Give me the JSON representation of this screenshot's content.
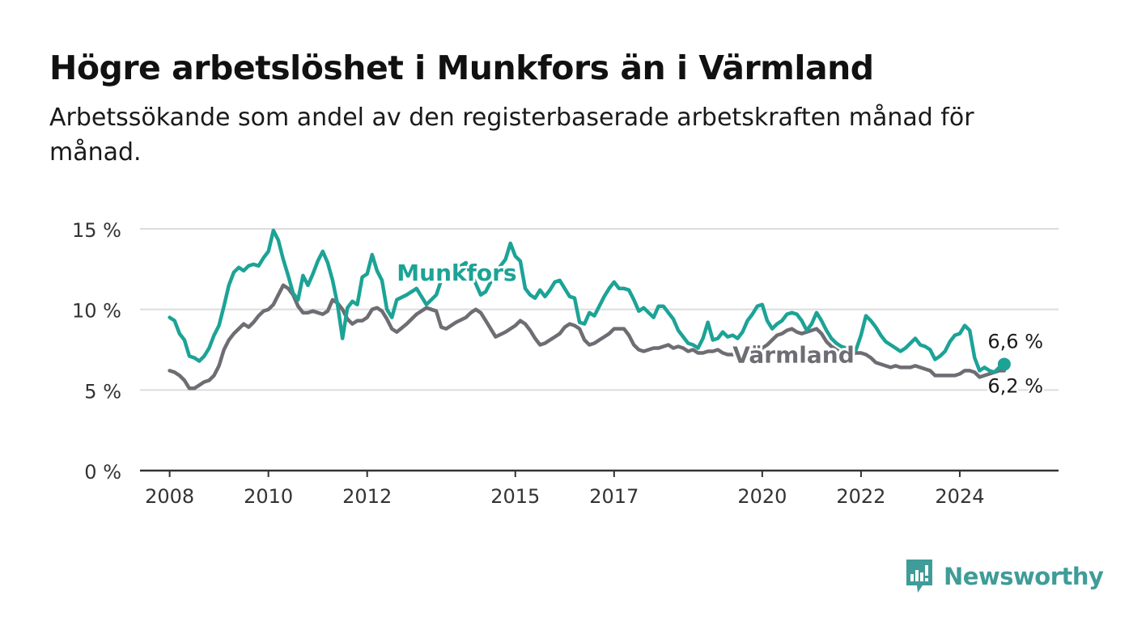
{
  "header": {
    "title": "Högre arbetslöshet i Munkfors än i Värmland",
    "subtitle": "Arbetssökande som andel av den registerbaserade arbetskraften månad för månad."
  },
  "brand": {
    "name": "Newsworthy",
    "color": "#3f9c98",
    "icon": "newsworthy-logo-icon"
  },
  "chart_data": {
    "type": "line",
    "x_unit": "year",
    "xlim": [
      2007.4,
      2026.0
    ],
    "ylim": [
      0,
      15
    ],
    "yticks": [
      0,
      5,
      10,
      15
    ],
    "ytick_labels": [
      "0 %",
      "5 %",
      "10 %",
      "15 %"
    ],
    "xticks": [
      2008,
      2010,
      2012,
      2015,
      2017,
      2020,
      2022,
      2024
    ],
    "xtick_labels": [
      "2008",
      "2010",
      "2012",
      "2015",
      "2017",
      "2020",
      "2022",
      "2024"
    ],
    "grid": true,
    "legend": "none",
    "series": [
      {
        "name": "Munkfors",
        "color": "#1ca396",
        "label_anchor": [
          2012.6,
          11.8
        ],
        "end_label": "6,6 %",
        "x": [
          2008.0,
          2008.1,
          2008.2,
          2008.3,
          2008.4,
          2008.5,
          2008.6,
          2008.7,
          2008.8,
          2008.9,
          2009.0,
          2009.1,
          2009.2,
          2009.3,
          2009.4,
          2009.5,
          2009.6,
          2009.7,
          2009.8,
          2009.9,
          2010.0,
          2010.1,
          2010.2,
          2010.3,
          2010.4,
          2010.5,
          2010.6,
          2010.7,
          2010.8,
          2010.9,
          2011.0,
          2011.1,
          2011.2,
          2011.3,
          2011.4,
          2011.5,
          2011.6,
          2011.7,
          2011.8,
          2011.9,
          2012.0,
          2012.1,
          2012.2,
          2012.3,
          2012.4,
          2012.5,
          2012.6,
          2012.8,
          2013.0,
          2013.2,
          2013.4,
          2013.5,
          2013.6,
          2013.7,
          2013.8,
          2013.9,
          2014.0,
          2014.1,
          2014.2,
          2014.3,
          2014.4,
          2014.6,
          2014.8,
          2014.9,
          2015.0,
          2015.1,
          2015.2,
          2015.3,
          2015.4,
          2015.5,
          2015.6,
          2015.7,
          2015.8,
          2015.9,
          2016.0,
          2016.1,
          2016.2,
          2016.3,
          2016.4,
          2016.5,
          2016.6,
          2016.7,
          2016.8,
          2016.9,
          2017.0,
          2017.1,
          2017.2,
          2017.3,
          2017.4,
          2017.5,
          2017.6,
          2017.7,
          2017.8,
          2017.9,
          2018.0,
          2018.1,
          2018.2,
          2018.3,
          2018.4,
          2018.5,
          2018.6,
          2018.7,
          2018.8,
          2018.9,
          2019.0,
          2019.1,
          2019.2,
          2019.3,
          2019.4,
          2019.5,
          2019.6,
          2019.7,
          2019.8,
          2019.9,
          2020.0,
          2020.1,
          2020.2,
          2020.3,
          2020.4,
          2020.5,
          2020.6,
          2020.7,
          2020.8,
          2020.9,
          2021.0,
          2021.1,
          2021.2,
          2021.3,
          2021.4,
          2021.5,
          2021.6,
          2021.7,
          2021.8,
          2021.9,
          2022.0,
          2022.1,
          2022.2,
          2022.3,
          2022.4,
          2022.5,
          2022.6,
          2022.7,
          2022.8,
          2022.9,
          2023.0,
          2023.1,
          2023.2,
          2023.3,
          2023.4,
          2023.5,
          2023.6,
          2023.7,
          2023.8,
          2023.9,
          2024.0,
          2024.1,
          2024.2,
          2024.3,
          2024.4,
          2024.5,
          2024.6,
          2024.7,
          2024.8,
          2024.9
        ],
        "y": [
          9.5,
          9.3,
          8.5,
          8.1,
          7.1,
          7.0,
          6.8,
          7.1,
          7.6,
          8.4,
          9.0,
          10.2,
          11.5,
          12.3,
          12.6,
          12.4,
          12.7,
          12.8,
          12.7,
          13.2,
          13.6,
          14.9,
          14.3,
          13.1,
          12.1,
          11.0,
          10.6,
          12.1,
          11.5,
          12.2,
          13.0,
          13.6,
          12.9,
          11.8,
          10.3,
          8.2,
          10.1,
          10.5,
          10.3,
          12.0,
          12.2,
          13.4,
          12.4,
          11.8,
          10.0,
          9.5,
          10.6,
          10.9,
          11.3,
          10.3,
          10.9,
          11.8,
          12.4,
          12.3,
          12.6,
          12.7,
          12.9,
          12.3,
          11.6,
          10.9,
          11.1,
          12.3,
          13.1,
          14.1,
          13.3,
          13.0,
          11.3,
          10.9,
          10.7,
          11.2,
          10.8,
          11.2,
          11.7,
          11.8,
          11.3,
          10.8,
          10.7,
          9.2,
          9.1,
          9.8,
          9.6,
          10.2,
          10.8,
          11.3,
          11.7,
          11.3,
          11.3,
          11.2,
          10.6,
          9.9,
          10.1,
          9.8,
          9.5,
          10.2,
          10.2,
          9.8,
          9.4,
          8.7,
          8.3,
          7.9,
          7.8,
          7.6,
          8.2,
          9.2,
          8.1,
          8.2,
          8.6,
          8.3,
          8.4,
          8.2,
          8.6,
          9.3,
          9.7,
          10.2,
          10.3,
          9.3,
          8.8,
          9.1,
          9.3,
          9.7,
          9.8,
          9.7,
          9.3,
          8.7,
          9.1,
          9.8,
          9.3,
          8.7,
          8.2,
          7.9,
          7.7,
          7.6,
          7.4,
          7.5,
          8.4,
          9.6,
          9.3,
          8.9,
          8.4,
          8.0,
          7.8,
          7.6,
          7.4,
          7.6,
          7.9,
          8.2,
          7.8,
          7.7,
          7.5,
          6.9,
          7.1,
          7.4,
          8.0,
          8.4,
          8.5,
          9.0,
          8.7,
          7.0,
          6.2,
          6.4,
          6.2,
          6.1,
          6.4,
          6.6
        ]
      },
      {
        "name": "Värmland",
        "color": "#6e6d73",
        "label_anchor": [
          2019.4,
          6.7
        ],
        "end_label": "6,2 %",
        "x": [
          2008.0,
          2008.1,
          2008.2,
          2008.3,
          2008.4,
          2008.5,
          2008.6,
          2008.7,
          2008.8,
          2008.9,
          2009.0,
          2009.1,
          2009.2,
          2009.3,
          2009.4,
          2009.5,
          2009.6,
          2009.7,
          2009.8,
          2009.9,
          2010.0,
          2010.1,
          2010.2,
          2010.3,
          2010.4,
          2010.5,
          2010.6,
          2010.7,
          2010.8,
          2010.9,
          2011.0,
          2011.1,
          2011.2,
          2011.3,
          2011.4,
          2011.5,
          2011.6,
          2011.7,
          2011.8,
          2011.9,
          2012.0,
          2012.1,
          2012.2,
          2012.3,
          2012.4,
          2012.5,
          2012.6,
          2012.8,
          2013.0,
          2013.2,
          2013.4,
          2013.5,
          2013.6,
          2013.8,
          2014.0,
          2014.1,
          2014.2,
          2014.3,
          2014.4,
          2014.6,
          2014.8,
          2014.9,
          2015.0,
          2015.1,
          2015.2,
          2015.3,
          2015.4,
          2015.5,
          2015.6,
          2015.7,
          2015.8,
          2015.9,
          2016.0,
          2016.1,
          2016.2,
          2016.3,
          2016.4,
          2016.5,
          2016.6,
          2016.7,
          2016.8,
          2016.9,
          2017.0,
          2017.1,
          2017.2,
          2017.3,
          2017.4,
          2017.5,
          2017.6,
          2017.7,
          2017.8,
          2017.9,
          2018.0,
          2018.1,
          2018.2,
          2018.3,
          2018.4,
          2018.5,
          2018.6,
          2018.7,
          2018.8,
          2018.9,
          2019.0,
          2019.1,
          2019.2,
          2019.3,
          2019.4,
          2019.5,
          2019.6,
          2019.7,
          2019.8,
          2019.9,
          2020.0,
          2020.1,
          2020.2,
          2020.3,
          2020.4,
          2020.5,
          2020.6,
          2020.7,
          2020.8,
          2020.9,
          2021.0,
          2021.1,
          2021.2,
          2021.3,
          2021.4,
          2021.5,
          2021.6,
          2021.7,
          2021.8,
          2021.9,
          2022.0,
          2022.1,
          2022.2,
          2022.3,
          2022.4,
          2022.5,
          2022.6,
          2022.7,
          2022.8,
          2022.9,
          2023.0,
          2023.1,
          2023.2,
          2023.3,
          2023.4,
          2023.5,
          2023.6,
          2023.7,
          2023.8,
          2023.9,
          2024.0,
          2024.1,
          2024.2,
          2024.3,
          2024.4,
          2024.5,
          2024.6,
          2024.7,
          2024.8,
          2024.9
        ],
        "y": [
          6.2,
          6.1,
          5.9,
          5.6,
          5.1,
          5.1,
          5.3,
          5.5,
          5.6,
          5.9,
          6.5,
          7.5,
          8.1,
          8.5,
          8.8,
          9.1,
          8.9,
          9.2,
          9.6,
          9.9,
          10.0,
          10.3,
          10.9,
          11.5,
          11.3,
          10.9,
          10.2,
          9.8,
          9.8,
          9.9,
          9.8,
          9.7,
          9.9,
          10.6,
          10.4,
          10.0,
          9.4,
          9.1,
          9.3,
          9.3,
          9.5,
          10.0,
          10.1,
          9.9,
          9.4,
          8.8,
          8.6,
          9.1,
          9.7,
          10.1,
          9.9,
          8.9,
          8.8,
          9.2,
          9.5,
          9.8,
          10.0,
          9.8,
          9.3,
          8.3,
          8.6,
          8.8,
          9.0,
          9.3,
          9.1,
          8.7,
          8.2,
          7.8,
          7.9,
          8.1,
          8.3,
          8.5,
          8.9,
          9.1,
          9.0,
          8.8,
          8.1,
          7.8,
          7.9,
          8.1,
          8.3,
          8.5,
          8.8,
          8.8,
          8.8,
          8.4,
          7.8,
          7.5,
          7.4,
          7.5,
          7.6,
          7.6,
          7.7,
          7.8,
          7.6,
          7.7,
          7.6,
          7.4,
          7.5,
          7.3,
          7.3,
          7.4,
          7.4,
          7.5,
          7.3,
          7.2,
          7.2,
          7.3,
          7.3,
          7.5,
          7.7,
          7.8,
          7.6,
          7.8,
          8.1,
          8.4,
          8.5,
          8.7,
          8.8,
          8.6,
          8.5,
          8.6,
          8.7,
          8.8,
          8.5,
          8.0,
          7.7,
          7.5,
          7.3,
          7.2,
          7.2,
          7.3,
          7.3,
          7.2,
          7.0,
          6.7,
          6.6,
          6.5,
          6.4,
          6.5,
          6.4,
          6.4,
          6.4,
          6.5,
          6.4,
          6.3,
          6.2,
          5.9,
          5.9,
          5.9,
          5.9,
          5.9,
          6.0,
          6.2,
          6.2,
          6.1,
          5.8,
          5.9,
          6.0,
          6.1,
          6.2,
          6.2
        ]
      }
    ]
  }
}
